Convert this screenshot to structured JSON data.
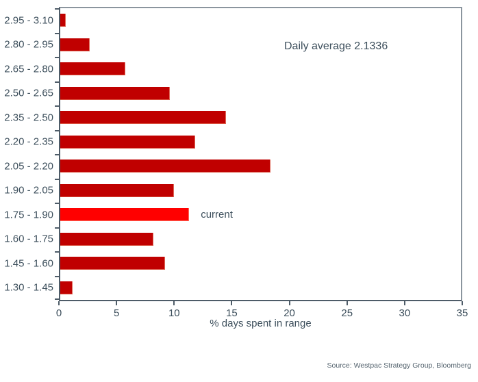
{
  "chart_data": {
    "type": "bar",
    "orientation": "horizontal",
    "title": "",
    "xlabel": "% days spent in range",
    "ylabel": "",
    "xlim": [
      0,
      35
    ],
    "xticks": [
      0,
      5,
      10,
      15,
      20,
      25,
      30,
      35
    ],
    "grid": false,
    "legend": false,
    "categories": [
      "2.95 - 3.10",
      "2.80 - 2.95",
      "2.65 - 2.80",
      "2.50 - 2.65",
      "2.35 - 2.50",
      "2.20 - 2.35",
      "2.05 - 2.20",
      "1.90 - 2.05",
      "1.75 - 1.90",
      "1.60 - 1.75",
      "1.45 - 1.60",
      "1.30 - 1.45"
    ],
    "values": [
      0.4,
      2.5,
      5.6,
      9.5,
      14.4,
      11.7,
      18.3,
      9.9,
      11.2,
      8.1,
      9.1,
      1.0
    ],
    "current_index": 8,
    "colors": {
      "bar": "#c00000",
      "current_bar": "#ff0000",
      "text": "#3d4f5c",
      "axis": "#4e5c68",
      "border": "#8b959e"
    }
  },
  "annotations": {
    "daily_average": "Daily average 2.1336",
    "current_label": "current"
  },
  "source": "Source: Westpac Strategy Group, Bloomberg"
}
